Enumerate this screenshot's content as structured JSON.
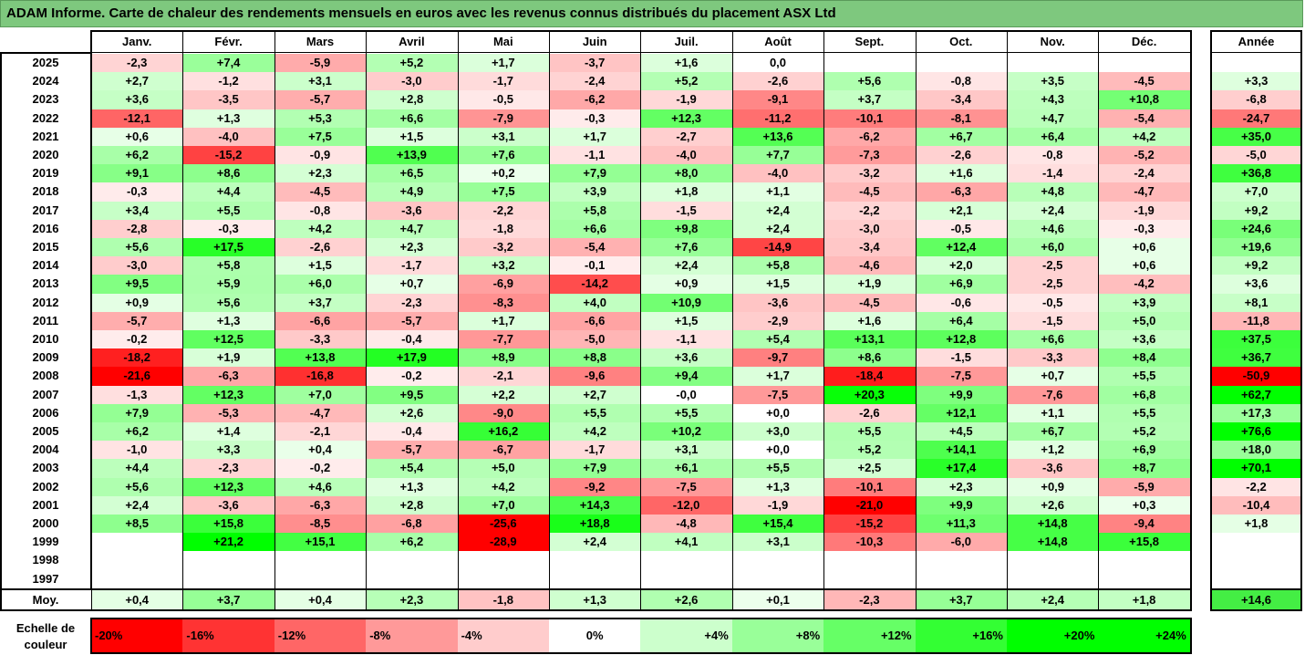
{
  "title": "ADAM Informe. Carte de chaleur des rendements mensuels en euros avec les revenus connus distribués du placement ASX Ltd",
  "chart_data": {
    "type": "heatmap",
    "title": "ADAM Informe. Carte de chaleur des rendements mensuels en euros avec les revenus connus distribués du placement ASX Ltd",
    "months": [
      "Janv.",
      "Févr.",
      "Mars",
      "Avril",
      "Mai",
      "Juin",
      "Juil.",
      "Août",
      "Sept.",
      "Oct.",
      "Nov.",
      "Déc."
    ],
    "annual_header": "Année",
    "rows": [
      {
        "year": "2025",
        "values": [
          "-2,3",
          "+7,4",
          "-5,9",
          "+5,2",
          "+1,7",
          "-3,7",
          "+1,6",
          "0,0",
          "",
          "",
          "",
          ""
        ],
        "annual": ""
      },
      {
        "year": "2024",
        "values": [
          "+2,7",
          "-1,2",
          "+3,1",
          "-3,0",
          "-1,7",
          "-2,4",
          "+5,2",
          "-2,6",
          "+5,6",
          "-0,8",
          "+3,5",
          "-4,5"
        ],
        "annual": "+3,3"
      },
      {
        "year": "2023",
        "values": [
          "+3,6",
          "-3,5",
          "-5,7",
          "+2,8",
          "-0,5",
          "-6,2",
          "-1,9",
          "-9,1",
          "+3,7",
          "-3,4",
          "+4,3",
          "+10,8"
        ],
        "annual": "-6,8"
      },
      {
        "year": "2022",
        "values": [
          "-12,1",
          "+1,3",
          "+5,3",
          "+6,6",
          "-7,9",
          "-0,3",
          "+12,3",
          "-11,2",
          "-10,1",
          "-8,1",
          "+4,7",
          "-5,4"
        ],
        "annual": "-24,7"
      },
      {
        "year": "2021",
        "values": [
          "+0,6",
          "-4,0",
          "+7,5",
          "+1,5",
          "+3,1",
          "+1,7",
          "-2,7",
          "+13,6",
          "-6,2",
          "+6,7",
          "+6,4",
          "+4,2"
        ],
        "annual": "+35,0"
      },
      {
        "year": "2020",
        "values": [
          "+6,2",
          "-15,2",
          "-0,9",
          "+13,9",
          "+7,6",
          "-1,1",
          "-4,0",
          "+7,7",
          "-7,3",
          "-2,6",
          "-0,8",
          "-5,2"
        ],
        "annual": "-5,0"
      },
      {
        "year": "2019",
        "values": [
          "+9,1",
          "+8,6",
          "+2,3",
          "+6,5",
          "+0,2",
          "+7,9",
          "+8,0",
          "-4,0",
          "-3,2",
          "+1,6",
          "-1,4",
          "-2,4"
        ],
        "annual": "+36,8"
      },
      {
        "year": "2018",
        "values": [
          "-0,3",
          "+4,4",
          "-4,5",
          "+4,9",
          "+7,5",
          "+3,9",
          "+1,8",
          "+1,1",
          "-4,5",
          "-6,3",
          "+4,8",
          "-4,7"
        ],
        "annual": "+7,0"
      },
      {
        "year": "2017",
        "values": [
          "+3,4",
          "+5,5",
          "-0,8",
          "-3,6",
          "-2,2",
          "+5,8",
          "-1,5",
          "+2,4",
          "-2,2",
          "+2,1",
          "+2,4",
          "-1,9"
        ],
        "annual": "+9,2"
      },
      {
        "year": "2016",
        "values": [
          "-2,8",
          "-0,3",
          "+4,2",
          "+4,7",
          "-1,8",
          "+6,6",
          "+9,8",
          "+2,4",
          "-3,0",
          "-0,5",
          "+4,6",
          "-0,3"
        ],
        "annual": "+24,6"
      },
      {
        "year": "2015",
        "values": [
          "+5,6",
          "+17,5",
          "-2,6",
          "+2,3",
          "-3,2",
          "-5,4",
          "+7,6",
          "-14,9",
          "-3,4",
          "+12,4",
          "+6,0",
          "+0,6"
        ],
        "annual": "+19,6"
      },
      {
        "year": "2014",
        "values": [
          "-3,0",
          "+5,8",
          "+1,5",
          "-1,7",
          "+3,2",
          "-0,1",
          "+2,4",
          "+5,8",
          "-4,6",
          "+2,0",
          "-2,5",
          "+0,6"
        ],
        "annual": "+9,2"
      },
      {
        "year": "2013",
        "values": [
          "+9,5",
          "+5,9",
          "+6,0",
          "+0,7",
          "-6,9",
          "-14,2",
          "+0,9",
          "+1,5",
          "+1,9",
          "+6,9",
          "-2,5",
          "-4,2"
        ],
        "annual": "+3,6"
      },
      {
        "year": "2012",
        "values": [
          "+0,9",
          "+5,6",
          "+3,7",
          "-2,3",
          "-8,3",
          "+4,0",
          "+10,9",
          "-3,6",
          "-4,5",
          "-0,6",
          "-0,5",
          "+3,9"
        ],
        "annual": "+8,1"
      },
      {
        "year": "2011",
        "values": [
          "-5,7",
          "+1,3",
          "-6,6",
          "-5,7",
          "+1,7",
          "-6,6",
          "+1,5",
          "-2,9",
          "+1,6",
          "+6,4",
          "-1,5",
          "+5,0"
        ],
        "annual": "-11,8"
      },
      {
        "year": "2010",
        "values": [
          "-0,2",
          "+12,5",
          "-3,3",
          "-0,4",
          "-7,7",
          "-5,0",
          "-1,1",
          "+5,4",
          "+13,1",
          "+12,8",
          "+6,6",
          "+3,6"
        ],
        "annual": "+37,5"
      },
      {
        "year": "2009",
        "values": [
          "-18,2",
          "+1,9",
          "+13,8",
          "+17,9",
          "+8,9",
          "+8,8",
          "+3,6",
          "-9,7",
          "+8,6",
          "-1,5",
          "-3,3",
          "+8,4"
        ],
        "annual": "+36,7"
      },
      {
        "year": "2008",
        "values": [
          "-21,6",
          "-6,3",
          "-16,8",
          "-0,2",
          "-2,1",
          "-9,6",
          "+9,4",
          "+1,7",
          "-18,4",
          "-7,5",
          "+0,7",
          "+5,5"
        ],
        "annual": "-50,9"
      },
      {
        "year": "2007",
        "values": [
          "-1,3",
          "+12,3",
          "+7,0",
          "+9,5",
          "+2,2",
          "+2,7",
          "-0,0",
          "-7,5",
          "+20,3",
          "+9,9",
          "-7,6",
          "+6,8"
        ],
        "annual": "+62,7"
      },
      {
        "year": "2006",
        "values": [
          "+7,9",
          "-5,3",
          "-4,7",
          "+2,6",
          "-9,0",
          "+5,5",
          "+5,5",
          "+0,0",
          "-2,6",
          "+12,1",
          "+1,1",
          "+5,5"
        ],
        "annual": "+17,3"
      },
      {
        "year": "2005",
        "values": [
          "+6,2",
          "+1,4",
          "-2,1",
          "-0,4",
          "+16,2",
          "+4,2",
          "+10,2",
          "+3,0",
          "+5,5",
          "+4,5",
          "+6,7",
          "+5,2"
        ],
        "annual": "+76,6"
      },
      {
        "year": "2004",
        "values": [
          "-1,0",
          "+3,3",
          "+0,4",
          "-5,7",
          "-6,7",
          "-1,7",
          "+3,1",
          "+0,0",
          "+5,2",
          "+14,1",
          "+1,2",
          "+6,9"
        ],
        "annual": "+18,0"
      },
      {
        "year": "2003",
        "values": [
          "+4,4",
          "-2,3",
          "-0,2",
          "+5,4",
          "+5,0",
          "+7,9",
          "+6,1",
          "+5,5",
          "+2,5",
          "+17,4",
          "-3,6",
          "+8,7"
        ],
        "annual": "+70,1"
      },
      {
        "year": "2002",
        "values": [
          "+5,6",
          "+12,3",
          "+4,6",
          "+1,3",
          "+4,2",
          "-9,2",
          "-7,5",
          "+1,3",
          "-10,1",
          "+2,3",
          "+0,9",
          "-5,9"
        ],
        "annual": "-2,2"
      },
      {
        "year": "2001",
        "values": [
          "+2,4",
          "-3,6",
          "-6,3",
          "+2,8",
          "+7,0",
          "+14,3",
          "-12,0",
          "-1,9",
          "-21,0",
          "+9,9",
          "+2,6",
          "+0,3"
        ],
        "annual": "-10,4"
      },
      {
        "year": "2000",
        "values": [
          "+8,5",
          "+15,8",
          "-8,5",
          "-6,8",
          "-25,6",
          "+18,8",
          "-4,8",
          "+15,4",
          "-15,2",
          "+11,3",
          "+14,8",
          "-9,4"
        ],
        "annual": "+1,8"
      },
      {
        "year": "1999",
        "values": [
          "",
          "+21,2",
          "+15,1",
          "+6,2",
          "-28,9",
          "+2,4",
          "+4,1",
          "+3,1",
          "-10,3",
          "-6,0",
          "+14,8",
          "+15,8"
        ],
        "annual": ""
      },
      {
        "year": "1998",
        "values": [
          "",
          "",
          "",
          "",
          "",
          "",
          "",
          "",
          "",
          "",
          "",
          ""
        ],
        "annual": ""
      },
      {
        "year": "1997",
        "values": [
          "",
          "",
          "",
          "",
          "",
          "",
          "",
          "",
          "",
          "",
          "",
          ""
        ],
        "annual": ""
      }
    ],
    "average": {
      "label": "Moy.",
      "values": [
        "+0,4",
        "+3,7",
        "+0,4",
        "+2,3",
        "-1,8",
        "+1,3",
        "+2,6",
        "+0,1",
        "-2,3",
        "+3,7",
        "+2,4",
        "+1,8"
      ],
      "annual": "+14,6"
    },
    "color_scale": {
      "label": "Echelle de couleur",
      "steps": [
        {
          "label": "-20%",
          "value": -20,
          "color": "#ff0000"
        },
        {
          "label": "-16%",
          "value": -16,
          "color": "#ff3333"
        },
        {
          "label": "-12%",
          "value": -12,
          "color": "#ff6666"
        },
        {
          "label": "-8%",
          "value": -8,
          "color": "#ff9999"
        },
        {
          "label": "-4%",
          "value": -4,
          "color": "#ffcccc"
        },
        {
          "label": "0%",
          "value": 0,
          "color": "#ffffff"
        },
        {
          "label": "+4%",
          "value": 4,
          "color": "#ccffcc"
        },
        {
          "label": "+8%",
          "value": 8,
          "color": "#99ff99"
        },
        {
          "label": "+12%",
          "value": 12,
          "color": "#66ff66"
        },
        {
          "label": "+16%",
          "value": 16,
          "color": "#33ff33"
        },
        {
          "label": "+20%",
          "value": 20,
          "color": "#00ff00"
        },
        {
          "label": "+24%",
          "value": 24,
          "color": "#00ff00"
        }
      ]
    }
  }
}
